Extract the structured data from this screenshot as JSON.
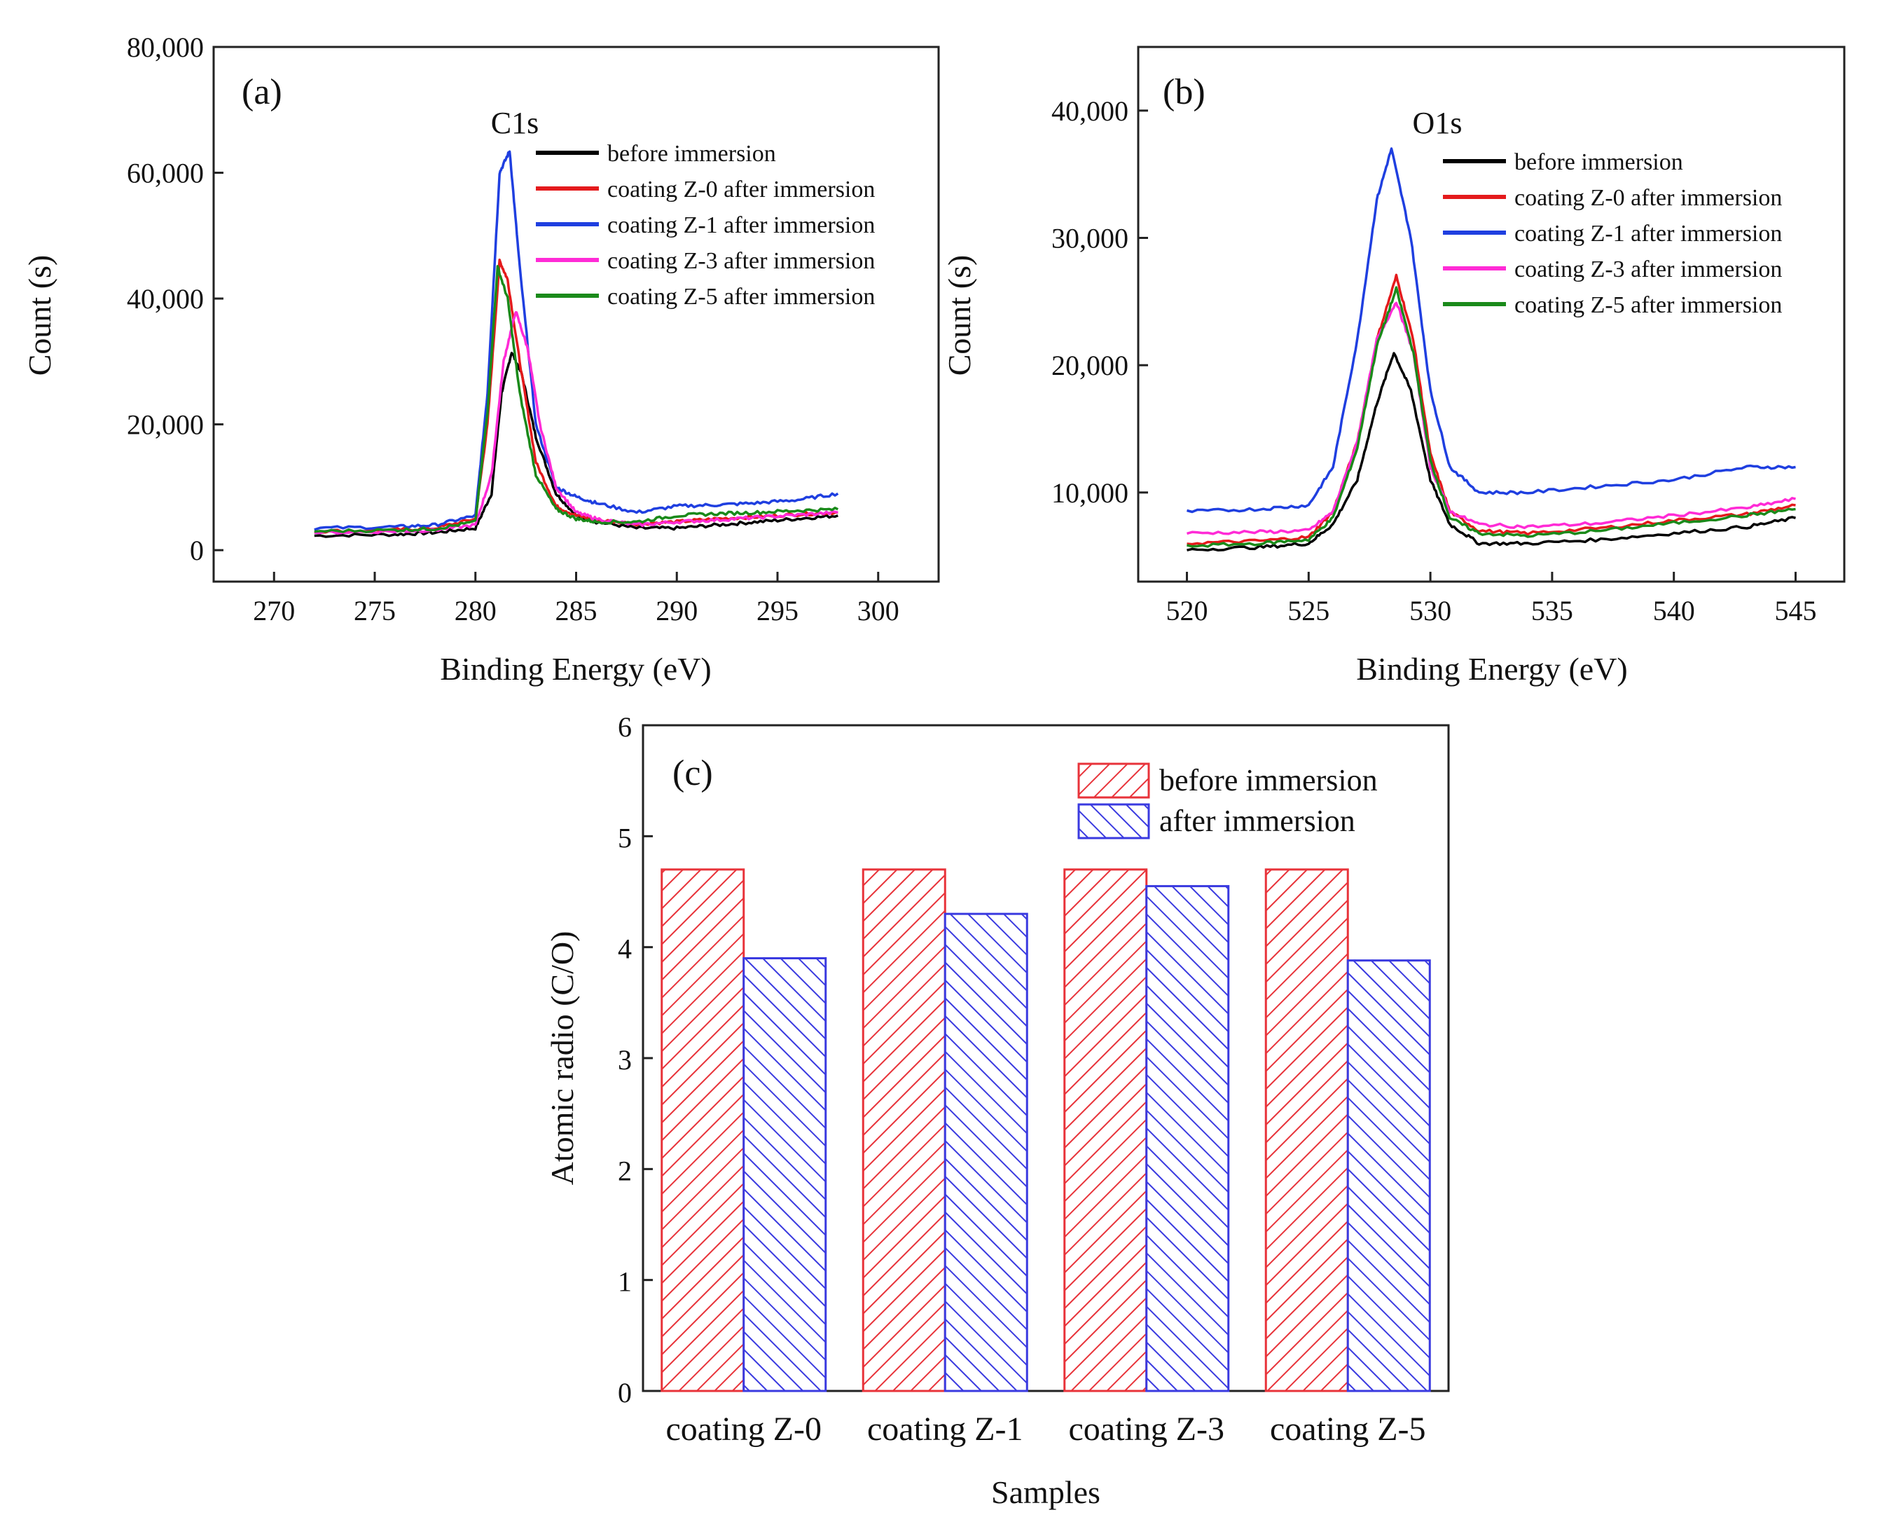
{
  "chart_data": [
    {
      "id": "a",
      "type": "line",
      "panel_label": "(a)",
      "annotation": "C1s",
      "xlabel": "Binding Energy (eV)",
      "ylabel": "Count (s)",
      "xlim": [
        267,
        303
      ],
      "ylim": [
        -5000,
        80000
      ],
      "xticks": [
        270,
        275,
        280,
        285,
        290,
        295,
        300
      ],
      "yticks": [
        0,
        20000,
        40000,
        60000,
        80000
      ],
      "ytick_labels": [
        "0",
        "20,000",
        "40,000",
        "60,000",
        "80,000"
      ],
      "legend_position": "top-right",
      "series": [
        {
          "name": "before immersion",
          "color": "#000000",
          "x": [
            272,
            276,
            278,
            280,
            280.8,
            281.3,
            281.8,
            282.3,
            283,
            284,
            285,
            286,
            288,
            290,
            292,
            294,
            296,
            298
          ],
          "y": [
            2300,
            2500,
            2800,
            3500,
            9000,
            25000,
            31500,
            28000,
            18000,
            9000,
            5500,
            4500,
            3500,
            3500,
            4000,
            4500,
            5000,
            5500
          ]
        },
        {
          "name": "coating Z-0 after immersion",
          "color": "#e41a1c",
          "x": [
            272,
            276,
            278,
            280,
            280.6,
            281.2,
            281.6,
            282.2,
            283,
            284,
            285,
            286,
            288,
            290,
            292,
            294,
            296,
            298
          ],
          "y": [
            3000,
            3200,
            3500,
            5000,
            20000,
            46000,
            43000,
            30000,
            14000,
            7000,
            5500,
            4800,
            4200,
            4500,
            5000,
            5300,
            5700,
            6000
          ]
        },
        {
          "name": "coating Z-1 after immersion",
          "color": "#1f3fe0",
          "x": [
            272,
            276,
            278,
            280,
            280.6,
            281.2,
            281.7,
            282.2,
            283,
            284,
            285,
            286,
            288,
            290,
            292,
            294,
            296,
            298
          ],
          "y": [
            3500,
            3700,
            4000,
            5500,
            25000,
            60000,
            63500,
            45000,
            20000,
            10000,
            8500,
            7500,
            6000,
            7000,
            7200,
            7500,
            8000,
            9000
          ]
        },
        {
          "name": "coating Z-3 after immersion",
          "color": "#ff2bd6",
          "x": [
            272,
            276,
            278,
            280,
            280.8,
            281.4,
            282,
            282.6,
            283.2,
            284,
            285,
            286,
            288,
            290,
            292,
            294,
            296,
            298
          ],
          "y": [
            2800,
            3000,
            3200,
            4000,
            12000,
            30000,
            38000,
            32000,
            20000,
            10000,
            6000,
            5000,
            4000,
            4500,
            4800,
            5200,
            5600,
            6000
          ]
        },
        {
          "name": "coating Z-5 after immersion",
          "color": "#1a8a1a",
          "x": [
            272,
            276,
            278,
            280,
            280.6,
            281.1,
            281.6,
            282.2,
            283,
            284,
            285,
            286,
            288,
            290,
            292,
            294,
            296,
            298
          ],
          "y": [
            3000,
            3200,
            3400,
            4500,
            22000,
            45000,
            40000,
            25000,
            12000,
            6500,
            5000,
            4500,
            4500,
            5500,
            5800,
            6000,
            6300,
            6500
          ]
        }
      ]
    },
    {
      "id": "b",
      "type": "line",
      "panel_label": "(b)",
      "annotation": "O1s",
      "xlabel": "Binding Energy (eV)",
      "ylabel": "Count (s)",
      "xlim": [
        518,
        547
      ],
      "ylim": [
        3000,
        45000
      ],
      "xticks": [
        520,
        525,
        530,
        535,
        540,
        545
      ],
      "yticks": [
        10000,
        20000,
        30000,
        40000
      ],
      "ytick_labels": [
        "10,000",
        "20,000",
        "30,000",
        "40,000"
      ],
      "legend_position": "top-right",
      "series": [
        {
          "name": "before immersion",
          "color": "#000000",
          "x": [
            520,
            523,
            525,
            526,
            527,
            527.8,
            528.5,
            529.2,
            530,
            530.8,
            532,
            534,
            537,
            540,
            543,
            545
          ],
          "y": [
            5500,
            5700,
            6000,
            7500,
            11000,
            17000,
            21000,
            18000,
            11000,
            7500,
            6000,
            6000,
            6300,
            6800,
            7300,
            8000
          ]
        },
        {
          "name": "coating Z-0 after immersion",
          "color": "#e41a1c",
          "x": [
            520,
            523,
            525,
            526,
            527,
            527.8,
            528.6,
            529.3,
            530,
            530.8,
            532,
            534,
            537,
            540,
            543,
            545
          ],
          "y": [
            6000,
            6200,
            6500,
            8500,
            14000,
            22000,
            27000,
            22000,
            13000,
            8500,
            7000,
            6800,
            7200,
            7800,
            8300,
            9000
          ]
        },
        {
          "name": "coating Z-1 after immersion",
          "color": "#1f3fe0",
          "x": [
            520,
            523,
            525,
            526,
            527,
            527.8,
            528.4,
            529.2,
            530,
            530.8,
            532,
            534,
            537,
            540,
            543,
            545
          ],
          "y": [
            8500,
            8700,
            9000,
            12000,
            22000,
            33000,
            37000,
            30000,
            18000,
            12000,
            10000,
            10000,
            10500,
            11000,
            12000,
            12000
          ]
        },
        {
          "name": "coating Z-3 after immersion",
          "color": "#ff2bd6",
          "x": [
            520,
            523,
            525,
            526,
            527,
            527.8,
            528.6,
            529.3,
            530,
            530.8,
            532,
            534,
            537,
            540,
            543,
            545
          ],
          "y": [
            6800,
            6900,
            7000,
            8500,
            14000,
            22000,
            25000,
            21000,
            12000,
            8500,
            7500,
            7300,
            7600,
            8200,
            8800,
            9500
          ]
        },
        {
          "name": "coating Z-5 after immersion",
          "color": "#1a8a1a",
          "x": [
            520,
            523,
            525,
            526,
            527,
            527.8,
            528.6,
            529.3,
            530,
            530.8,
            532,
            534,
            537,
            540,
            543,
            545
          ],
          "y": [
            5800,
            6000,
            6300,
            8000,
            13500,
            21500,
            26000,
            21000,
            12500,
            8000,
            6800,
            6600,
            7000,
            7600,
            8200,
            8700
          ]
        }
      ]
    },
    {
      "id": "c",
      "type": "bar",
      "panel_label": "(c)",
      "xlabel": "Samples",
      "ylabel": "Atomic radio (C/O)",
      "ylim": [
        0,
        6
      ],
      "yticks": [
        0,
        1,
        2,
        3,
        4,
        5,
        6
      ],
      "categories": [
        "coating Z-0",
        "coating Z-1",
        "coating Z-3",
        "coating Z-5"
      ],
      "legend_position": "top-right",
      "series": [
        {
          "name": "before immersion",
          "color": "#e8333a",
          "values": [
            4.7,
            4.7,
            4.7,
            4.7
          ]
        },
        {
          "name": "after immersion",
          "color": "#3a3ae0",
          "values": [
            3.9,
            4.3,
            4.55,
            3.88
          ]
        }
      ]
    }
  ]
}
